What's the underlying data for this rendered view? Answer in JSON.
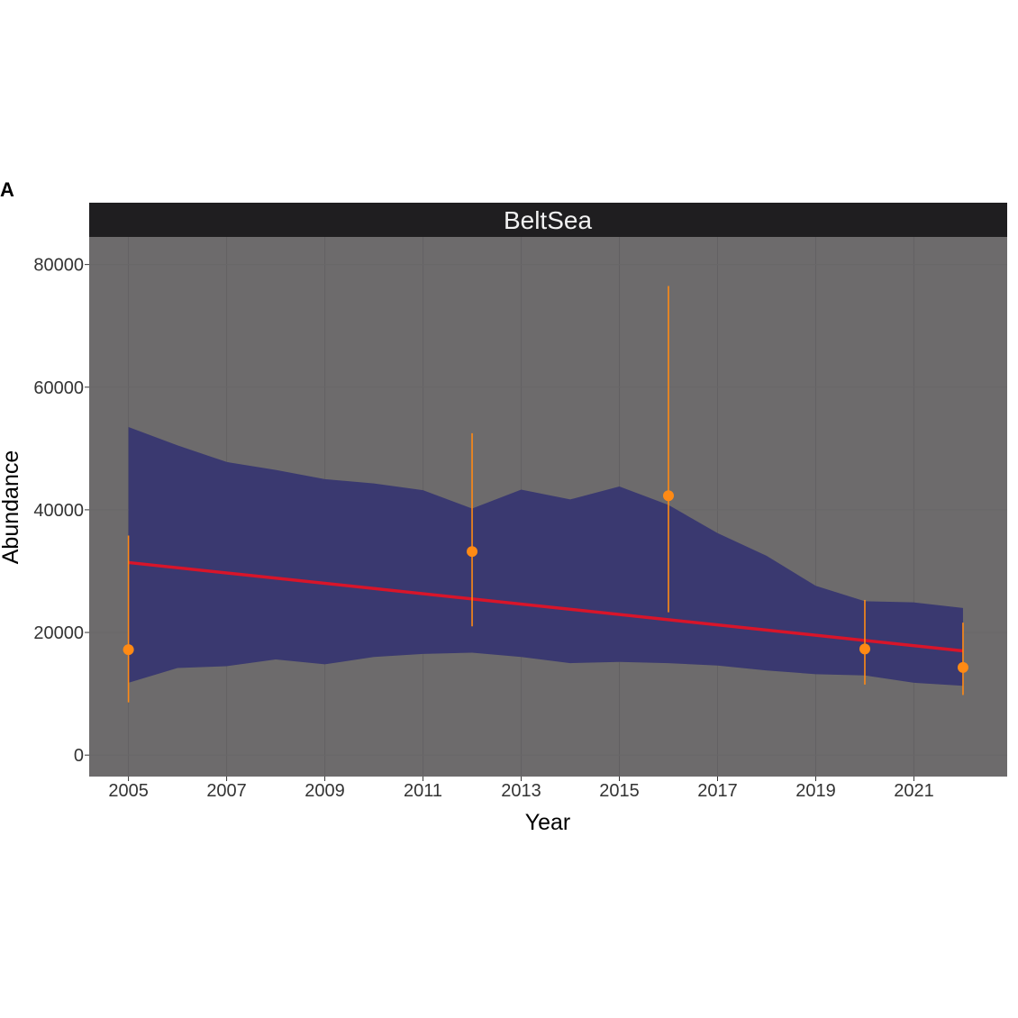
{
  "panel_tag": "A",
  "chart_data": {
    "type": "line",
    "facet_label": "BeltSea",
    "xlabel": "Year",
    "ylabel": "Abundance",
    "xlim": [
      2004.2,
      2022.9
    ],
    "ylim": [
      -3500,
      84500
    ],
    "x_ticks": [
      2005,
      2007,
      2009,
      2011,
      2013,
      2015,
      2017,
      2019,
      2021
    ],
    "y_ticks": [
      0,
      20000,
      40000,
      60000,
      80000
    ],
    "grid": true,
    "legend": "none",
    "colors": {
      "panel_background": "#6d6b6c",
      "strip_background": "#1f1e20",
      "ribbon": "#3a3970",
      "trend_line": "#d8152a",
      "points": "#ff8a14"
    },
    "series": [
      {
        "kind": "ribbon",
        "x": [
          2005,
          2006,
          2007,
          2008,
          2009,
          2010,
          2011,
          2012,
          2013,
          2014,
          2015,
          2016,
          2017,
          2018,
          2019,
          2020,
          2021,
          2022
        ],
        "lower": [
          11800,
          14200,
          14500,
          15600,
          14800,
          16000,
          16500,
          16700,
          16000,
          15000,
          15200,
          15000,
          14600,
          13800,
          13200,
          13000,
          11800,
          11300
        ],
        "upper": [
          53500,
          50500,
          47800,
          46500,
          45000,
          44300,
          43200,
          40200,
          43300,
          41700,
          43800,
          40800,
          36200,
          32500,
          27600,
          25100,
          24900,
          24000
        ]
      },
      {
        "kind": "line",
        "x": [
          2005,
          2022
        ],
        "values": [
          31400,
          17000
        ]
      },
      {
        "kind": "points",
        "x": [
          2005,
          2012,
          2016,
          2020,
          2022
        ],
        "values": [
          17200,
          33200,
          42300,
          17300,
          14300
        ],
        "lower": [
          8600,
          21000,
          23300,
          11500,
          9800
        ],
        "upper": [
          35800,
          52500,
          76500,
          25300,
          21600
        ]
      }
    ]
  }
}
